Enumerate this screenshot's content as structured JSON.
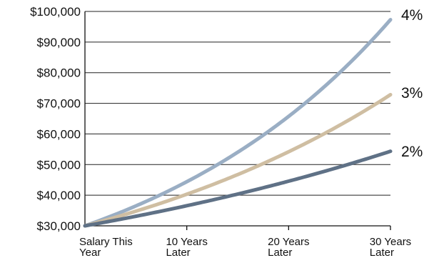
{
  "chart_data": {
    "type": "line",
    "title": "",
    "xlabel": "",
    "ylabel": "",
    "x": [
      0,
      10,
      20,
      30
    ],
    "x_tick_labels": [
      [
        "Salary This",
        "Year"
      ],
      [
        "10 Years",
        "Later"
      ],
      [
        "20 Years",
        "Later"
      ],
      [
        "30 Years",
        "Later"
      ]
    ],
    "y_ticks": [
      30000,
      40000,
      50000,
      60000,
      70000,
      80000,
      90000,
      100000
    ],
    "y_tick_labels": [
      "$30,000",
      "$40,000",
      "$50,000",
      "$60,000",
      "$70,000",
      "$80,000",
      "$90,000",
      "$100,000"
    ],
    "ylim": [
      30000,
      100000
    ],
    "xlim": [
      0,
      30
    ],
    "grid": true,
    "legend": "inline labels at right end of each line",
    "series": [
      {
        "name": "4%",
        "rate": 0.04,
        "start": 30000,
        "color": "#9aaec4"
      },
      {
        "name": "3%",
        "rate": 0.03,
        "start": 30000,
        "color": "#cfbea2"
      },
      {
        "name": "2%",
        "rate": 0.02,
        "start": 30000,
        "color": "#5f7186"
      }
    ]
  }
}
